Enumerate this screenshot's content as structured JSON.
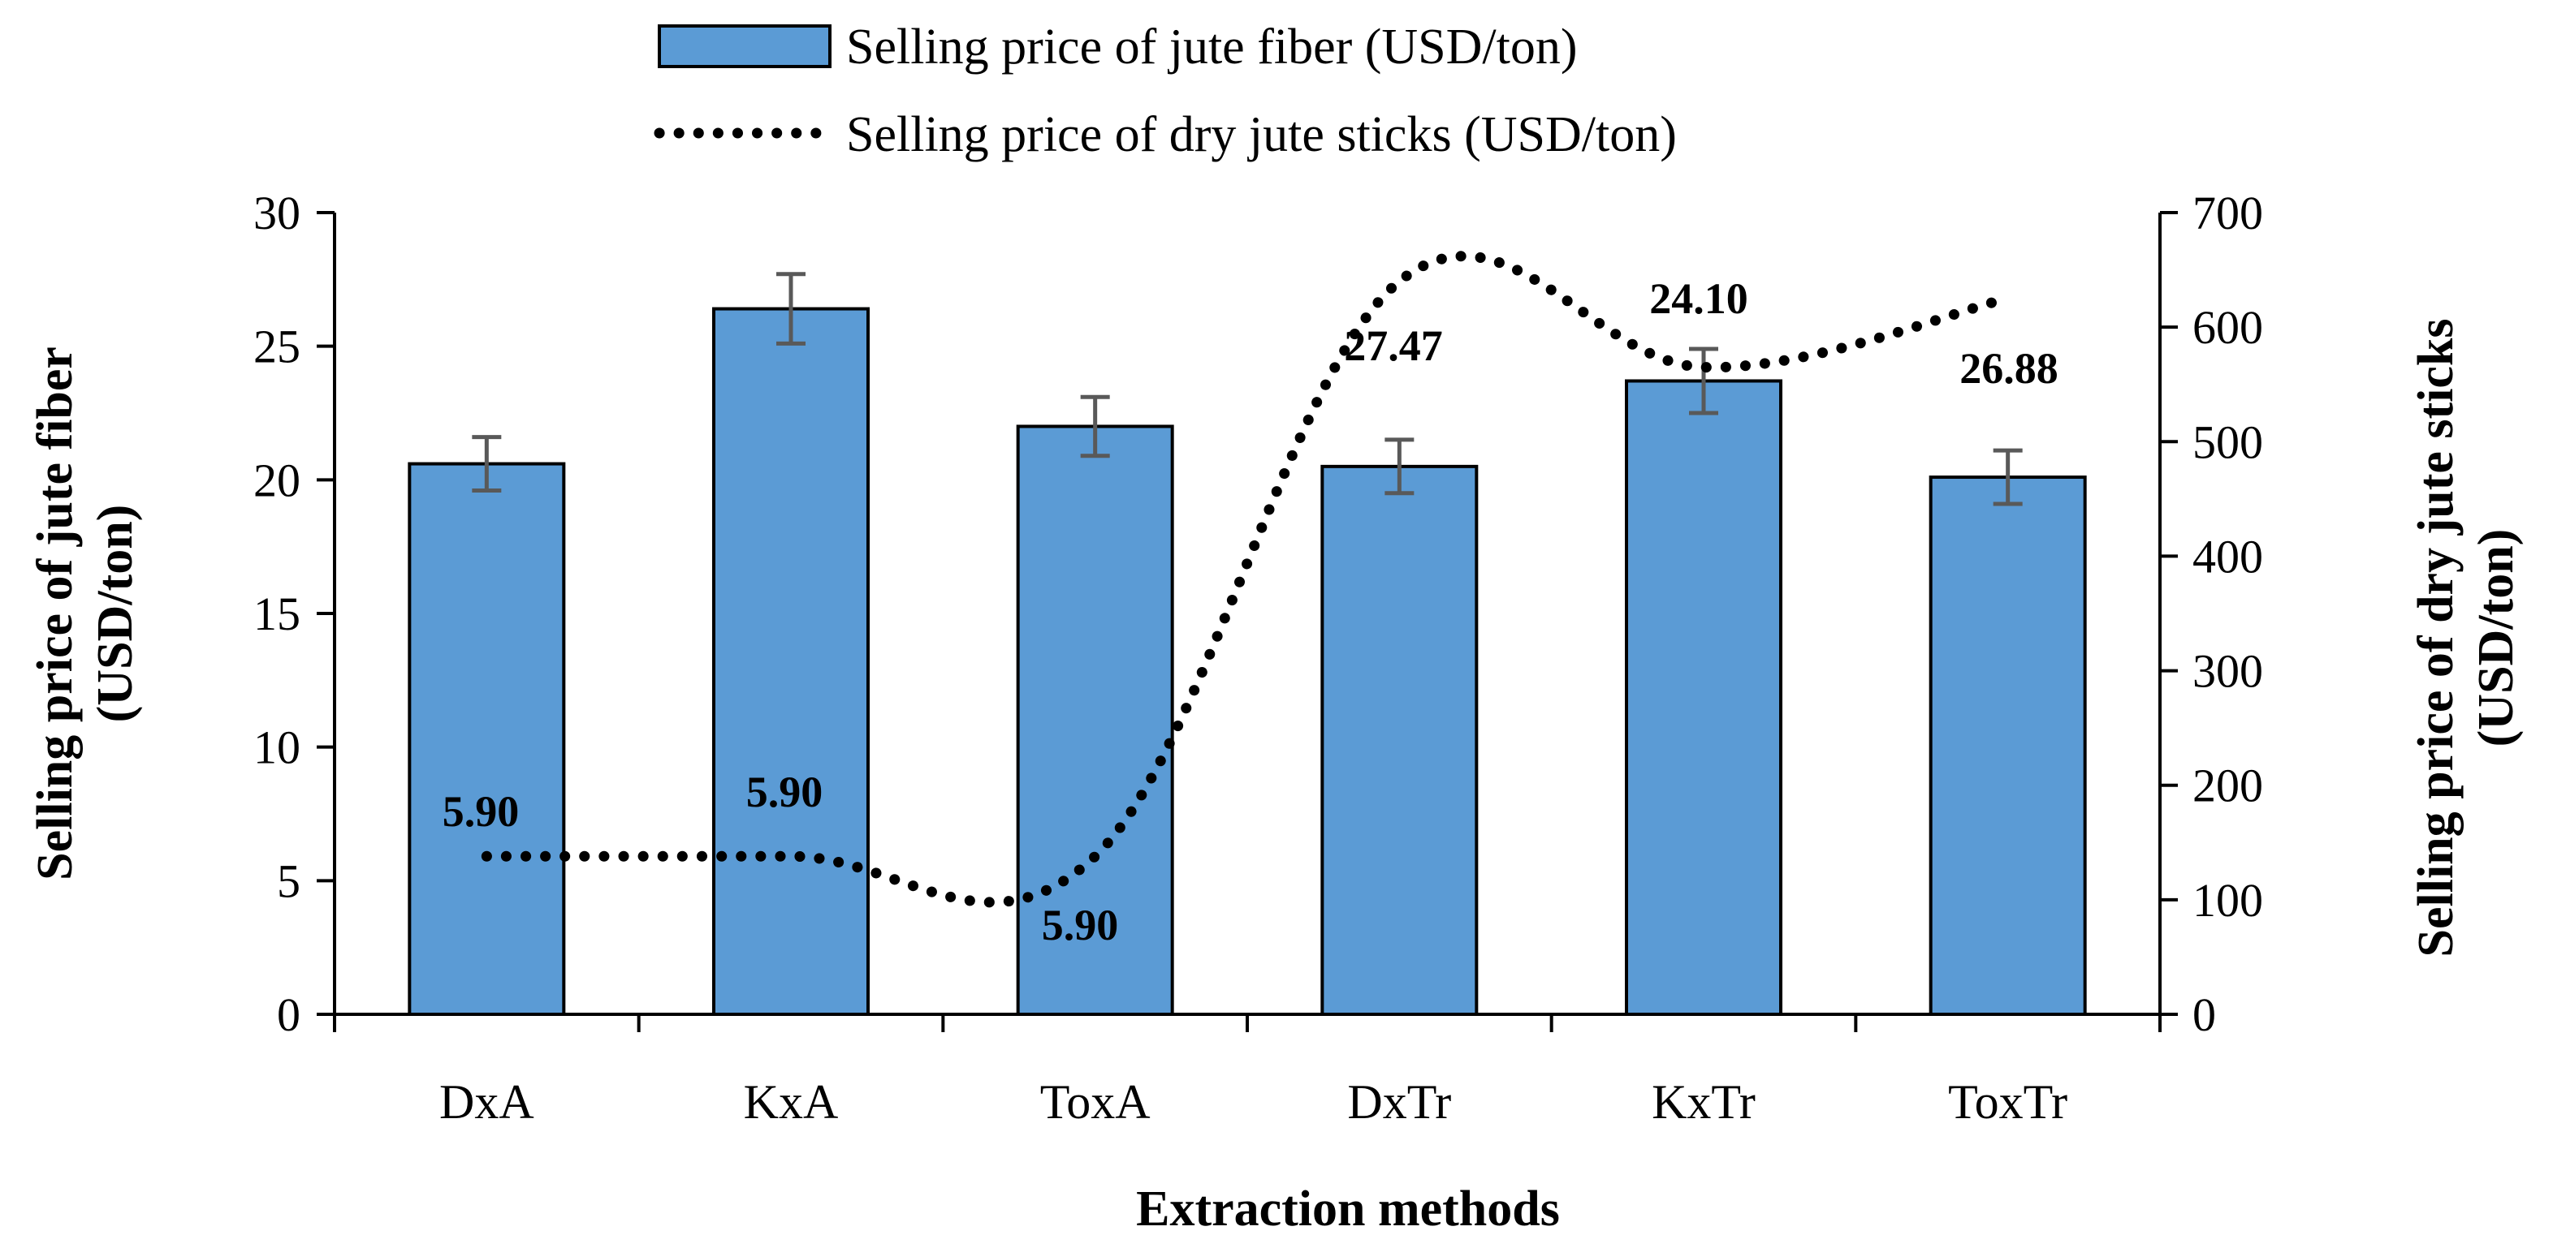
{
  "chart_data": {
    "type": "bar",
    "categories": [
      "DxA",
      "KxA",
      "ToxA",
      "DxTr",
      "KxTr",
      "ToxTr"
    ],
    "series": [
      {
        "name": "Selling price of jute fiber (USD/ton)",
        "type": "bar",
        "axis": "left",
        "color": "#5b9bd5",
        "values": [
          20.6,
          26.4,
          22.0,
          20.5,
          23.7,
          20.1
        ],
        "errors": [
          1.0,
          1.3,
          1.1,
          1.0,
          1.2,
          1.0
        ]
      },
      {
        "name": "Selling price of dry jute sticks (USD/ton)",
        "type": "line",
        "style": "dotted",
        "axis": "right",
        "color": "#000000",
        "values": [
          138,
          138,
          138,
          640,
          565,
          625
        ]
      }
    ],
    "data_labels": [
      {
        "category": "DxA",
        "text": "5.90"
      },
      {
        "category": "KxA",
        "text": "5.90"
      },
      {
        "category": "ToxA",
        "text": "5.90"
      },
      {
        "category": "DxTr",
        "text": "27.47"
      },
      {
        "category": "KxTr",
        "text": "24.10"
      },
      {
        "category": "ToxTr",
        "text": "26.88"
      }
    ],
    "xlabel": "Extraction methods",
    "ylabel_left": [
      "Selling price of jute fiber",
      "(USD/ton)"
    ],
    "ylabel_right": [
      "Selling price of dry jute sticks",
      "(USD/ton)"
    ],
    "ylim_left": [
      0,
      30
    ],
    "yticks_left": [
      0,
      5,
      10,
      15,
      20,
      25,
      30
    ],
    "ylim_right": [
      0,
      700
    ],
    "yticks_right": [
      0,
      100,
      200,
      300,
      400,
      500,
      600,
      700
    ],
    "legend": "top-center",
    "grid": false
  }
}
